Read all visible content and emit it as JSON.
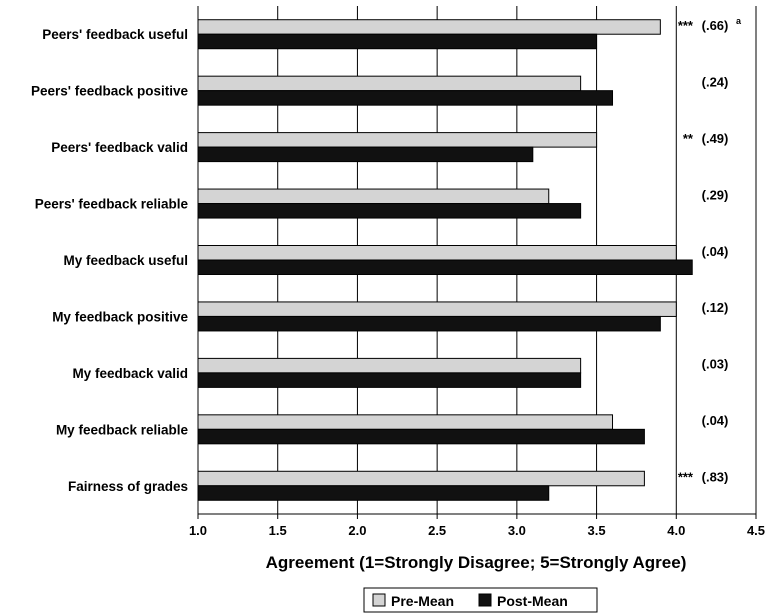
{
  "chart_data": {
    "type": "bar",
    "orientation": "horizontal",
    "categories": [
      "Peers' feedback useful",
      "Peers' feedback positive",
      "Peers' feedback valid",
      "Peers' feedback reliable",
      "My feedback useful",
      "My feedback positive",
      "My feedback valid",
      "My feedback reliable",
      "Fairness of grades"
    ],
    "series": [
      {
        "name": "Pre-Mean",
        "color": "#d4d4d4",
        "values": [
          3.9,
          3.4,
          3.5,
          3.2,
          4.0,
          4.0,
          3.4,
          3.6,
          3.8
        ]
      },
      {
        "name": "Post-Mean",
        "color": "#111111",
        "values": [
          3.5,
          3.6,
          3.1,
          3.4,
          4.1,
          3.9,
          3.4,
          3.8,
          3.2
        ]
      }
    ],
    "annotations": [
      {
        "stars": "***",
        "value": "(.66)",
        "sup": "a"
      },
      {
        "stars": "",
        "value": "(.24)",
        "sup": ""
      },
      {
        "stars": "**",
        "value": "(.49)",
        "sup": ""
      },
      {
        "stars": "",
        "value": "(.29)",
        "sup": ""
      },
      {
        "stars": "",
        "value": "(.04)",
        "sup": ""
      },
      {
        "stars": "",
        "value": "(.12)",
        "sup": ""
      },
      {
        "stars": "",
        "value": "(.03)",
        "sup": ""
      },
      {
        "stars": "",
        "value": "(.04)",
        "sup": ""
      },
      {
        "stars": "***",
        "value": "(.83)",
        "sup": ""
      }
    ],
    "xlabel": "Agreement (1=Strongly Disagree; 5=Strongly Agree)",
    "ylabel": "",
    "xlim": [
      1.0,
      4.5
    ],
    "xticks": [
      "1.0",
      "1.5",
      "2.0",
      "2.5",
      "3.0",
      "3.5",
      "4.0",
      "4.5"
    ],
    "grid": "vertical",
    "legend_position": "bottom-center"
  }
}
